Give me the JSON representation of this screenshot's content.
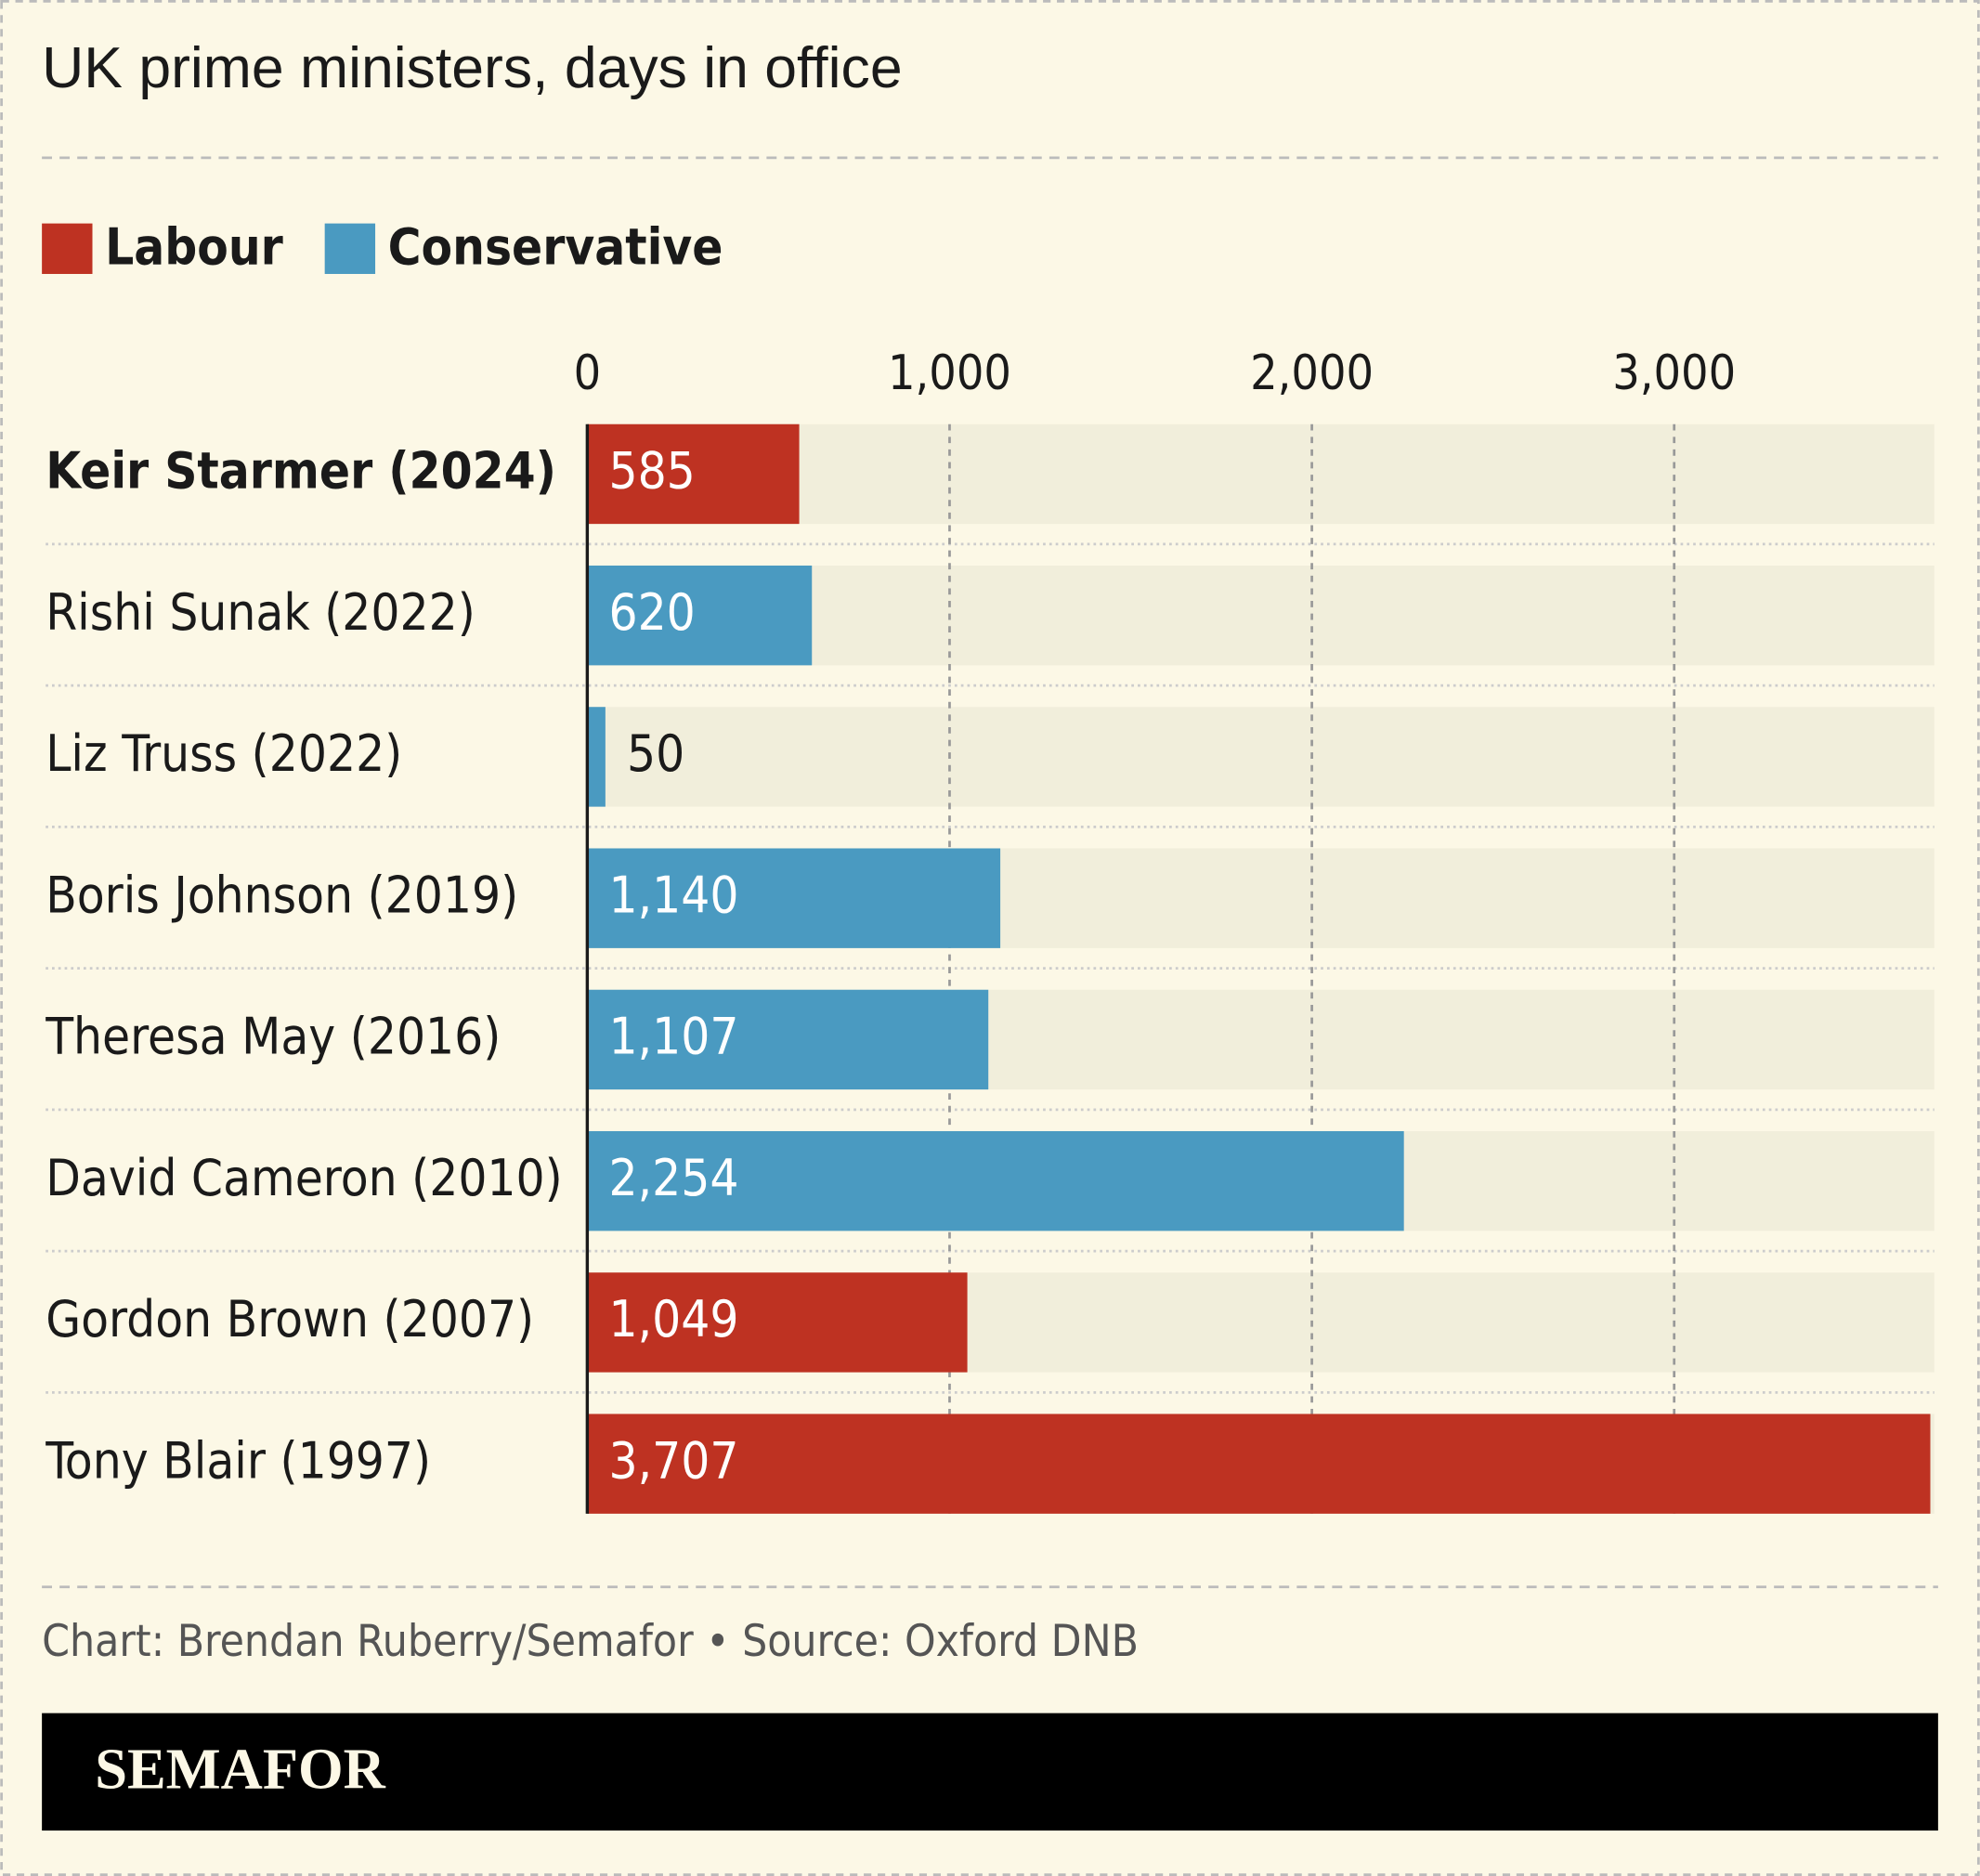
{
  "chart_data": {
    "type": "hbar",
    "title": "UK prime ministers, days in office",
    "categories": [
      "Keir Starmer (2024)",
      "Rishi Sunak (2022)",
      "Liz Truss (2022)",
      "Boris Johnson (2019)",
      "Theresa May (2016)",
      "David Cameron (2010)",
      "Gordon Brown (2007)",
      "Tony Blair (1997)"
    ],
    "highlight_index": 0,
    "series": [
      {
        "name": "Labour",
        "color": "#be3222",
        "values": [
          585,
          null,
          null,
          null,
          null,
          null,
          1049,
          3707
        ],
        "value_labels": [
          "585",
          null,
          null,
          null,
          null,
          null,
          "1,049",
          "3,707"
        ]
      },
      {
        "name": "Conservative",
        "color": "#4a9ac1",
        "values": [
          null,
          620,
          50,
          1140,
          1107,
          2254,
          null,
          null
        ],
        "value_labels": [
          null,
          "620",
          "50",
          "1,140",
          "1,107",
          "2,254",
          null,
          null
        ]
      }
    ],
    "xlim": [
      0,
      3718
    ],
    "xticks": [
      0,
      {
        "value": 1000,
        "label": "1,000"
      },
      {
        "value": 2000,
        "label": "2,000"
      },
      {
        "value": 3000,
        "label": "3,000"
      }
    ],
    "grid": true,
    "legend": "top-left",
    "source": "Chart: Brendan Ruberry/Semafor • Source: Oxford DNB",
    "brand": "SEMAFOR"
  }
}
